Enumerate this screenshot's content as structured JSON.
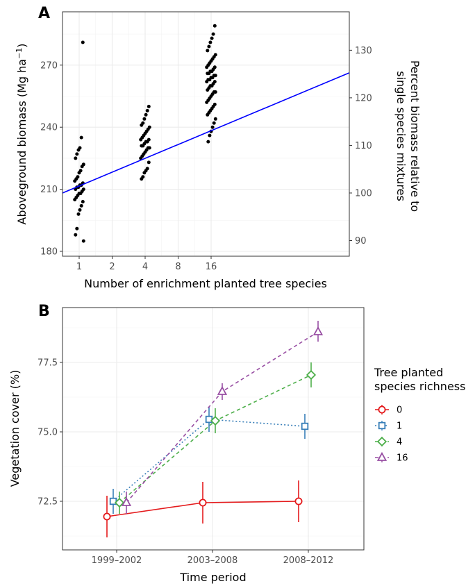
{
  "chart_data": [
    {
      "panel_label": "A",
      "type": "scatter",
      "x_axis": {
        "label": "Number of enrichment planted tree species",
        "scale": "log2",
        "ticks": [
          1,
          2,
          4,
          8,
          16
        ],
        "tick_labels": [
          "1",
          "2",
          "4",
          "8",
          "16"
        ]
      },
      "y_axis": {
        "label": "Aboveground biomass (Mg ha",
        "label_superscript": "−1",
        "label_suffix": ")",
        "ticks": [
          180,
          210,
          240,
          270
        ],
        "tick_labels": [
          "180",
          "210",
          "240",
          "270"
        ],
        "lim": [
          178,
          291
        ]
      },
      "y2_axis": {
        "label_line1": "Percent biomass relative to",
        "label_line2": "single species mixtures",
        "ticks": [
          90,
          100,
          110,
          120,
          130
        ],
        "tick_labels": [
          "90",
          "100",
          "110",
          "120",
          "130"
        ]
      },
      "grid": true,
      "points": [
        {
          "x": 1,
          "values": [
            281,
            235,
            230,
            229,
            227,
            225,
            222,
            221,
            219,
            218,
            216,
            215,
            214,
            213,
            212,
            212,
            211,
            211,
            210,
            210,
            209,
            208,
            208,
            207,
            206,
            205,
            204,
            202,
            200,
            198,
            191,
            188,
            185
          ]
        },
        {
          "x": 4,
          "values": [
            250,
            248,
            246,
            244,
            242,
            241,
            240,
            239,
            238,
            237,
            236,
            235,
            234,
            234,
            233,
            233,
            232,
            231,
            231,
            230,
            230,
            229,
            228,
            227,
            226,
            225,
            223,
            220,
            219,
            218,
            216,
            215
          ]
        },
        {
          "x": 16,
          "values": [
            289,
            285,
            283,
            281,
            279,
            277,
            275,
            274,
            273,
            272,
            271,
            270,
            269,
            269,
            268,
            267,
            267,
            266,
            266,
            265,
            265,
            264,
            264,
            263,
            263,
            262,
            262,
            261,
            260,
            260,
            259,
            258,
            257,
            257,
            256,
            255,
            254,
            253,
            252,
            251,
            250,
            249,
            248,
            247,
            246,
            244,
            242,
            240,
            238,
            236,
            233
          ]
        }
      ],
      "fit_line": {
        "color": "#0000ff",
        "at_x": [
          0.85,
          19.5
        ],
        "y": [
          208.2,
          266.3
        ]
      }
    },
    {
      "panel_label": "B",
      "type": "line",
      "categories": [
        "1999–2002",
        "2003–2008",
        "2008–2012"
      ],
      "x_axis": {
        "label": "Time period"
      },
      "y_axis": {
        "label": "Vegetation cover (%)",
        "ticks": [
          72.5,
          75.0,
          77.5
        ],
        "tick_labels": [
          "72.5",
          "75.0",
          "77.5"
        ],
        "lim": [
          70.9,
          79.2
        ]
      },
      "grid": true,
      "legend": {
        "title_line1": "Tree planted",
        "title_line2": "species richness",
        "placement": "right"
      },
      "series": [
        {
          "name": "0",
          "color": "#e41a1c",
          "marker": "circle",
          "dash": "solid",
          "values": [
            71.95,
            72.45,
            72.5
          ],
          "lower": [
            71.2,
            71.7,
            71.75
          ],
          "upper": [
            72.7,
            73.2,
            73.25
          ]
        },
        {
          "name": "1",
          "color": "#377eb8",
          "marker": "square",
          "dash": "dotted",
          "values": [
            72.5,
            75.45,
            75.2
          ],
          "lower": [
            72.05,
            75.0,
            74.75
          ],
          "upper": [
            72.95,
            75.9,
            75.65
          ]
        },
        {
          "name": "4",
          "color": "#4daf4a",
          "marker": "diamond",
          "dash": "dashed",
          "values": [
            72.45,
            75.4,
            77.05
          ],
          "lower": [
            72.05,
            74.95,
            76.6
          ],
          "upper": [
            72.85,
            75.85,
            77.5
          ]
        },
        {
          "name": "16",
          "color": "#984ea3",
          "marker": "triangle",
          "dash": "dashed",
          "values": [
            72.45,
            76.45,
            78.6
          ],
          "lower": [
            72.05,
            76.15,
            78.25
          ],
          "upper": [
            72.85,
            76.75,
            79.0
          ]
        }
      ]
    }
  ]
}
